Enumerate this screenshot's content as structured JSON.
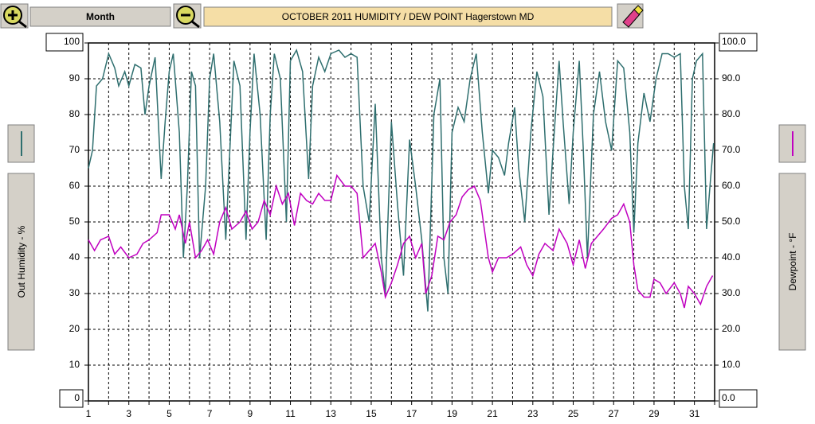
{
  "toolbar": {
    "range": "Month"
  },
  "chart_data": {
    "type": "line",
    "title": "OCTOBER  2011  HUMIDITY / DEW POINT  Hagerstown MD",
    "y_label": "Out Humidity - %",
    "y2_label": "Dewpoint - °F",
    "xlim": [
      1,
      32
    ],
    "xticks": [
      1,
      3,
      5,
      7,
      9,
      11,
      13,
      15,
      17,
      19,
      21,
      23,
      25,
      27,
      29,
      31
    ],
    "x_minor_ticks": [
      2,
      4,
      6,
      8,
      10,
      12,
      14,
      16,
      18,
      20,
      22,
      24,
      26,
      28,
      30,
      32
    ],
    "ylim": [
      0,
      100
    ],
    "yticks": [
      0,
      10,
      20,
      30,
      40,
      50,
      60,
      70,
      80,
      90,
      100
    ],
    "y2lim": [
      0,
      100
    ],
    "y2ticks": [
      {
        "value": 0,
        "label": "0.0"
      },
      {
        "value": 10,
        "label": "10.0"
      },
      {
        "value": 20,
        "label": "20.0"
      },
      {
        "value": 30,
        "label": "30.0"
      },
      {
        "value": 40,
        "label": "40.0"
      },
      {
        "value": 50,
        "label": "50.0"
      },
      {
        "value": 60,
        "label": "60.0"
      },
      {
        "value": 70,
        "label": "70.0"
      },
      {
        "value": 80,
        "label": "80.0"
      },
      {
        "value": 90,
        "label": "90.0"
      },
      {
        "value": 100,
        "label": "100.0"
      }
    ],
    "grid": true,
    "series": [
      {
        "color": "#2f6f6f",
        "axis": "y",
        "x": [
          1,
          1.2,
          1.4,
          1.7,
          2.0,
          2.3,
          2.5,
          2.8,
          3.0,
          3.3,
          3.6,
          3.8,
          4.0,
          4.3,
          4.6,
          4.8,
          5.0,
          5.2,
          5.5,
          5.7,
          5.9,
          6.1,
          6.3,
          6.5,
          6.8,
          7.0,
          7.2,
          7.5,
          7.8,
          8.0,
          8.2,
          8.5,
          8.8,
          9.0,
          9.2,
          9.5,
          9.8,
          10.0,
          10.2,
          10.5,
          10.8,
          11.0,
          11.3,
          11.6,
          11.9,
          12.1,
          12.4,
          12.7,
          13.0,
          13.4,
          13.7,
          14.0,
          14.3,
          14.6,
          14.9,
          15.2,
          15.5,
          15.7,
          16.0,
          16.3,
          16.6,
          16.9,
          17.2,
          17.5,
          17.8,
          18.1,
          18.4,
          18.6,
          18.8,
          19.0,
          19.3,
          19.6,
          19.9,
          20.2,
          20.5,
          20.8,
          21.0,
          21.3,
          21.6,
          21.8,
          22.1,
          22.3,
          22.6,
          22.9,
          23.2,
          23.5,
          23.8,
          24.0,
          24.3,
          24.5,
          24.8,
          25.0,
          25.3,
          25.5,
          25.7,
          26.0,
          26.3,
          26.6,
          26.9,
          27.2,
          27.5,
          27.8,
          28.0,
          28.2,
          28.5,
          28.8,
          29.1,
          29.4,
          29.7,
          30.0,
          30.3,
          30.5,
          30.7,
          30.9,
          31.1,
          31.4,
          31.6,
          31.8,
          31.95
        ],
        "values": [
          65,
          70,
          88,
          90,
          97,
          93,
          88,
          92,
          88,
          94,
          93,
          80,
          88,
          96,
          62,
          78,
          92,
          97,
          75,
          40,
          60,
          92,
          88,
          40,
          60,
          90,
          97,
          78,
          45,
          70,
          95,
          88,
          45,
          75,
          97,
          80,
          45,
          80,
          97,
          90,
          50,
          95,
          98,
          92,
          62,
          88,
          96,
          92,
          97,
          98,
          96,
          97,
          96,
          60,
          50,
          83,
          40,
          30,
          78,
          55,
          35,
          73,
          60,
          45,
          25,
          80,
          90,
          40,
          30,
          75,
          82,
          78,
          90,
          97,
          75,
          58,
          70,
          68,
          63,
          72,
          82,
          65,
          50,
          75,
          92,
          85,
          52,
          70,
          95,
          78,
          55,
          75,
          95,
          70,
          40,
          80,
          92,
          78,
          70,
          95,
          93,
          75,
          47,
          72,
          86,
          78,
          90,
          97,
          97,
          96,
          97,
          60,
          48,
          90,
          95,
          97,
          48,
          62,
          72
        ]
      },
      {
        "color": "#c000c0",
        "axis": "y2",
        "x": [
          1,
          1.3,
          1.6,
          2.0,
          2.3,
          2.6,
          3.0,
          3.4,
          3.7,
          4.0,
          4.4,
          4.6,
          5.0,
          5.3,
          5.5,
          5.8,
          6.0,
          6.3,
          6.6,
          6.9,
          7.2,
          7.5,
          7.8,
          8.1,
          8.5,
          8.8,
          9.1,
          9.4,
          9.7,
          10.0,
          10.3,
          10.6,
          10.9,
          11.2,
          11.5,
          11.8,
          12.1,
          12.4,
          12.7,
          13.0,
          13.3,
          13.7,
          14.0,
          14.3,
          14.6,
          14.9,
          15.2,
          15.5,
          15.7,
          16.0,
          16.3,
          16.6,
          16.9,
          17.2,
          17.5,
          17.7,
          18.0,
          18.3,
          18.6,
          18.9,
          19.2,
          19.5,
          19.8,
          20.1,
          20.4,
          20.8,
          21.0,
          21.3,
          21.7,
          22.0,
          22.4,
          22.7,
          23.0,
          23.3,
          23.6,
          24.0,
          24.3,
          24.7,
          25.0,
          25.3,
          25.6,
          25.9,
          26.2,
          26.5,
          26.9,
          27.2,
          27.5,
          27.8,
          28.0,
          28.2,
          28.5,
          28.8,
          29.0,
          29.3,
          29.6,
          30.0,
          30.3,
          30.5,
          30.7,
          31.0,
          31.3,
          31.6,
          31.9
        ],
        "values": [
          45,
          42,
          45,
          46,
          41,
          43,
          40,
          41,
          44,
          45,
          47,
          52,
          52,
          48,
          52,
          44,
          50,
          40,
          42,
          45,
          41,
          50,
          54,
          48,
          50,
          53,
          48,
          50,
          56,
          52,
          60,
          55,
          58,
          49,
          58,
          56,
          55,
          58,
          56,
          56,
          63,
          60,
          60,
          58,
          40,
          42,
          44,
          36,
          29,
          33,
          38,
          44,
          46,
          40,
          44,
          30,
          35,
          46,
          45,
          50,
          52,
          57,
          59,
          60,
          56,
          40,
          36,
          40,
          40,
          41,
          43,
          38,
          35,
          41,
          44,
          42,
          48,
          44,
          38,
          45,
          37,
          44,
          46,
          48,
          51,
          52,
          55,
          50,
          38,
          31,
          29,
          29,
          34,
          33,
          30,
          33,
          30,
          26,
          32,
          30,
          27,
          32,
          35
        ]
      }
    ]
  }
}
